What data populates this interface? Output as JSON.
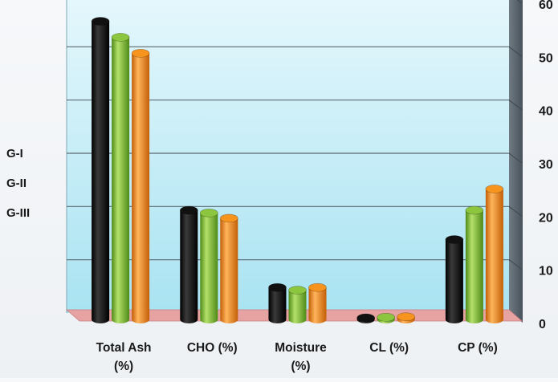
{
  "chart_data": {
    "type": "bar",
    "style": "3d-cylinder",
    "categories": [
      "Total Ash (%)",
      "CHO (%)",
      "Moisture (%)",
      "CL (%)",
      "CP (%)"
    ],
    "category_lines": [
      [
        "Total Ash",
        "(%)"
      ],
      [
        "CHO (%)"
      ],
      [
        "Moisture",
        "(%)"
      ],
      [
        "CL (%)"
      ],
      [
        "CP (%)"
      ]
    ],
    "series": [
      {
        "name": "G-I",
        "values": [
          56,
          20.5,
          6,
          0.3,
          15
        ],
        "color": "#111111"
      },
      {
        "name": "G-II",
        "values": [
          53,
          20,
          5.5,
          0.4,
          20.5
        ],
        "color": "#8cc63f"
      },
      {
        "name": "G-III",
        "values": [
          50,
          19,
          6,
          0.5,
          24.5
        ],
        "color": "#f7941d"
      }
    ],
    "y_axis": {
      "position": "right",
      "ylim": [
        0,
        60
      ],
      "tick_labels": [
        "0",
        "10",
        "20",
        "30",
        "40",
        "50",
        "60"
      ]
    },
    "legend_placement": "left",
    "grid": true,
    "colors": {
      "wall": "#c6eef8",
      "floor": "#e8a3a3",
      "side_wall": "#5c6770"
    }
  }
}
